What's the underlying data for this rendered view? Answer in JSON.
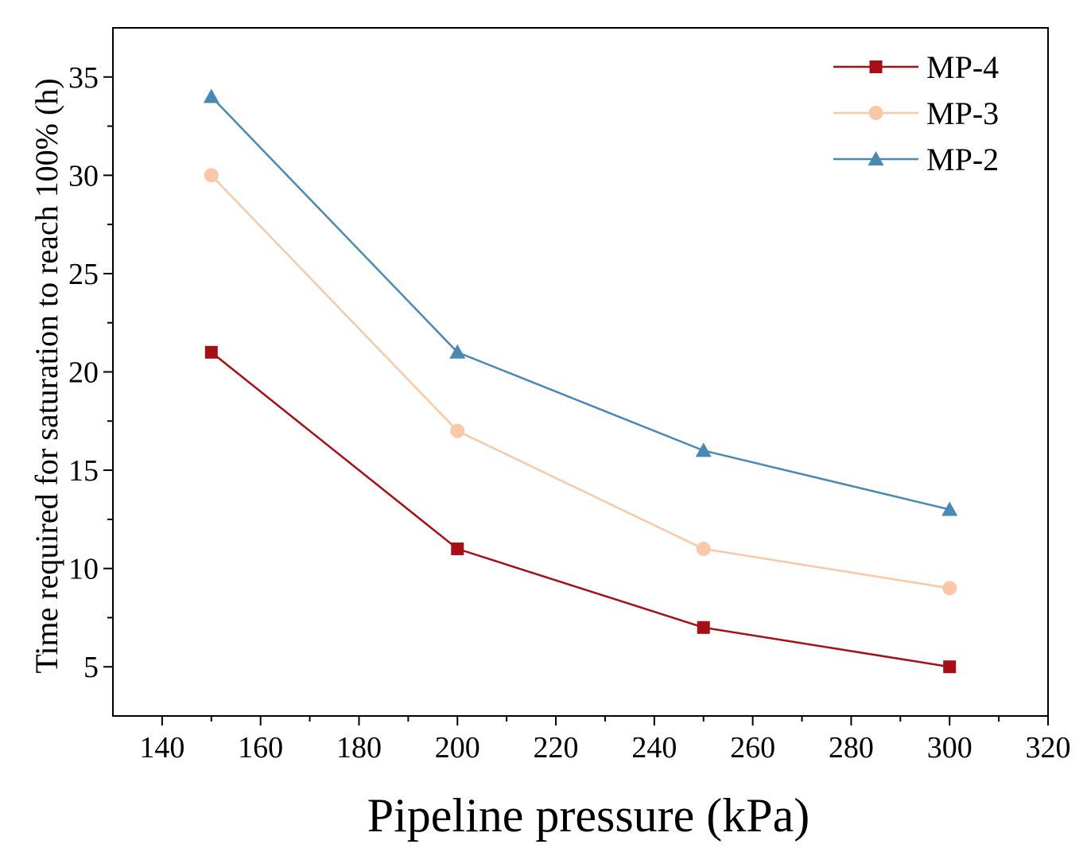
{
  "chart_data": {
    "type": "line",
    "title": "",
    "xlabel": "Pipeline pressure (kPa)",
    "ylabel": "Time required for saturation to reach 100% (h)",
    "xlim": [
      130,
      320
    ],
    "ylim": [
      2.5,
      37.5
    ],
    "x_ticks": [
      140,
      160,
      180,
      200,
      220,
      240,
      260,
      280,
      300,
      320
    ],
    "y_ticks": [
      5,
      10,
      15,
      20,
      25,
      30,
      35
    ],
    "x_tick_labels": [
      "140",
      "160",
      "180",
      "200",
      "220",
      "240",
      "260",
      "280",
      "300",
      "320"
    ],
    "y_tick_labels": [
      "5",
      "10",
      "15",
      "20",
      "25",
      "30",
      "35"
    ],
    "legend_position": "top-right",
    "grid": false,
    "x": [
      150,
      200,
      250,
      300
    ],
    "series": [
      {
        "name": "MP-4",
        "values": [
          21,
          11,
          7,
          5
        ],
        "color": "#a50f15",
        "marker": "square"
      },
      {
        "name": "MP-3",
        "values": [
          30,
          17,
          11,
          9
        ],
        "color": "#f8c8a8",
        "marker": "circle"
      },
      {
        "name": "MP-2",
        "values": [
          34,
          21,
          16,
          13
        ],
        "color": "#4a89b3",
        "marker": "triangle"
      }
    ]
  }
}
